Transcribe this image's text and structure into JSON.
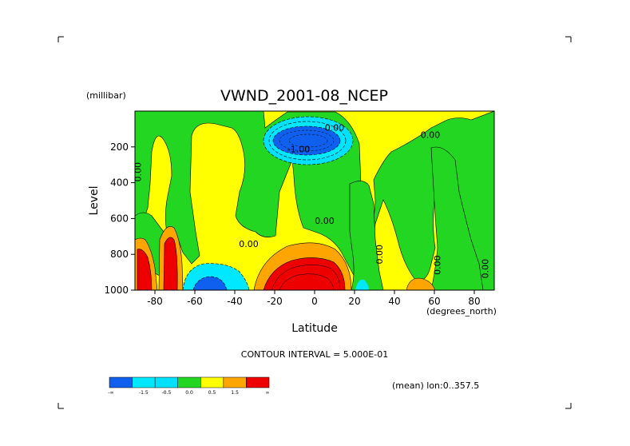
{
  "chart_data": {
    "type": "heatmap",
    "title": "VWND_2001-08_NCEP",
    "xlabel": "Latitude",
    "x_units": "(degrees_north)",
    "ylabel": "Level",
    "y_units": "(millibar)",
    "xlim": [
      -90,
      90
    ],
    "ylim": [
      1000,
      0
    ],
    "x_ticks": [
      -80,
      -60,
      -40,
      -20,
      0,
      20,
      40,
      60,
      80
    ],
    "x_tick_labels": [
      "-80",
      "-60",
      "-40",
      "-20",
      "0",
      "20",
      "40",
      "60",
      "80"
    ],
    "y_ticks": [
      200,
      400,
      600,
      800,
      1000
    ],
    "y_tick_labels": [
      "200",
      "400",
      "600",
      "800",
      "1000"
    ],
    "contour_interval_text": "CONTOUR INTERVAL = 5.000E-01",
    "mean_text": "(mean) lon:0..357.5",
    "contour_labels": [
      {
        "text": "0.00",
        "lat": 10,
        "level": 110
      },
      {
        "text": "0.00",
        "lat": 58,
        "level": 150
      },
      {
        "text": "-1.00",
        "lat": -8,
        "level": 230
      },
      {
        "text": "0.00",
        "lat": -87,
        "level": 340,
        "rotated": true
      },
      {
        "text": "0.00",
        "lat": 5,
        "level": 630
      },
      {
        "text": "0.00",
        "lat": -33,
        "level": 760
      },
      {
        "text": "0.00",
        "lat": 34,
        "level": 800,
        "rotated": true
      },
      {
        "text": "0.00",
        "lat": 63,
        "level": 860,
        "rotated": true
      },
      {
        "text": "0.00",
        "lat": 87,
        "level": 880,
        "rotated": true
      }
    ],
    "regions": [
      {
        "name": "strong negative core",
        "lat": [
          -16,
          14
        ],
        "level": [
          80,
          260
        ],
        "value": -2.0
      },
      {
        "name": "weak negative ring",
        "lat": [
          -22,
          16
        ],
        "level": [
          60,
          290
        ],
        "value": -1.0
      },
      {
        "name": "low-level positive maximum",
        "lat": [
          -28,
          18
        ],
        "level": [
          760,
          1000
        ],
        "value": 2.0
      },
      {
        "name": "positive lobe west",
        "lat": [
          -90,
          -82
        ],
        "level": [
          750,
          1000
        ],
        "value": 1.5
      },
      {
        "name": "positive lobe east",
        "lat": [
          -78,
          -68
        ],
        "level": [
          690,
          1000
        ],
        "value": 1.5
      },
      {
        "name": "negative near surface",
        "lat": [
          -64,
          -46
        ],
        "level": [
          880,
          1000
        ],
        "value": -1.0
      },
      {
        "name": "small positive",
        "lat": [
          50,
          58
        ],
        "level": [
          950,
          1000
        ],
        "value": 0.5
      }
    ],
    "colorbar": {
      "colors": [
        "#1a66ff",
        "#00d8ff",
        "#00ffff",
        "#32cd32",
        "#ffff00",
        "#ffa500",
        "#ff0000"
      ],
      "fill_colors": [
        "#1060f0",
        "#00e8ff",
        "#00e0ff",
        "#22d622",
        "#ffff00",
        "#ffa500",
        "#ee0000"
      ],
      "labels": [
        "-∞",
        "-1.5",
        "-0.5",
        "0.0",
        "0.5",
        "1.5",
        "∞"
      ],
      "boundaries": [
        -1.5,
        -0.5,
        0.0,
        0.5,
        1.5
      ]
    }
  }
}
